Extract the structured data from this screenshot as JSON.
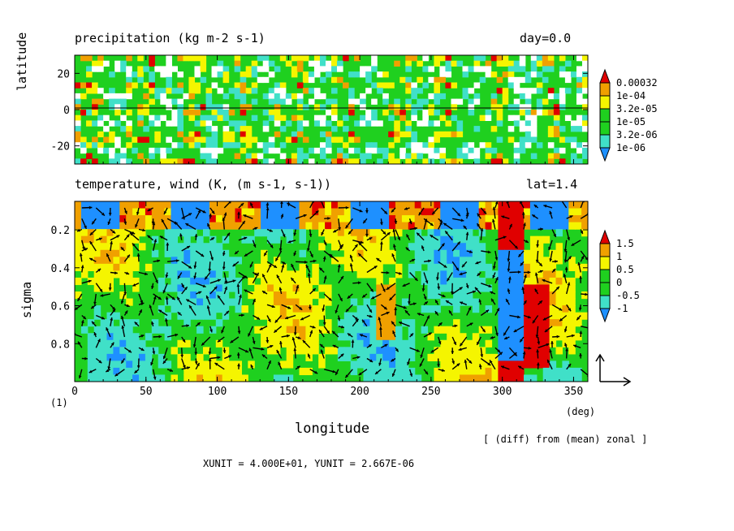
{
  "figure": {
    "panel_label": "(1)",
    "xlabel": "longitude",
    "x_unit_label": "(deg)",
    "note": "[ (diff) from (mean) zonal ]",
    "units_line": "XUNIT = 4.000E+01, YUNIT = 2.667E-06",
    "x_ticks": [
      "0",
      "50",
      "100",
      "150",
      "200",
      "250",
      "300",
      "350"
    ],
    "colors": {
      "white": "#ffffff",
      "blue": "#1e90ff",
      "cyan": "#40e0c8",
      "green": "#1fd01f",
      "yellow": "#f5f500",
      "orange": "#f0a000",
      "red": "#e00000"
    }
  },
  "chart_data": [
    {
      "type": "heatmap",
      "title": "precipitation (kg m-2 s-1)",
      "right_title": "day=0.0",
      "ylabel": "latitude",
      "xlim": [
        0,
        360
      ],
      "ylim": [
        -30,
        30
      ],
      "y_ticks": [
        "20",
        "0",
        "-20"
      ],
      "colorbar": {
        "labels": [
          "0.00032",
          "1e-04",
          "3.2e-05",
          "1e-05",
          "3.2e-06",
          "1e-06"
        ],
        "levels": [
          1e-06,
          3.2e-06,
          1e-05,
          3.2e-05,
          0.0001,
          0.00032
        ]
      },
      "reference_line_y": 0
    },
    {
      "type": "heatmap",
      "title": "temperature, wind (K, (m s-1, s-1))",
      "right_title": "lat=1.4",
      "ylabel": "sigma",
      "xlim": [
        0,
        360
      ],
      "ylim": [
        1.0,
        0.05
      ],
      "y_ticks": [
        "0.2",
        "0.4",
        "0.6",
        "0.8"
      ],
      "colorbar": {
        "labels": [
          "1.5",
          "1",
          "0.5",
          "0",
          "-0.5",
          "-1"
        ],
        "levels": [
          -1,
          -0.5,
          0,
          0.5,
          1,
          1.5
        ]
      },
      "overlay": "wind vectors",
      "reference_vector": {
        "x": 40.0,
        "y": 2.667e-06
      }
    }
  ]
}
